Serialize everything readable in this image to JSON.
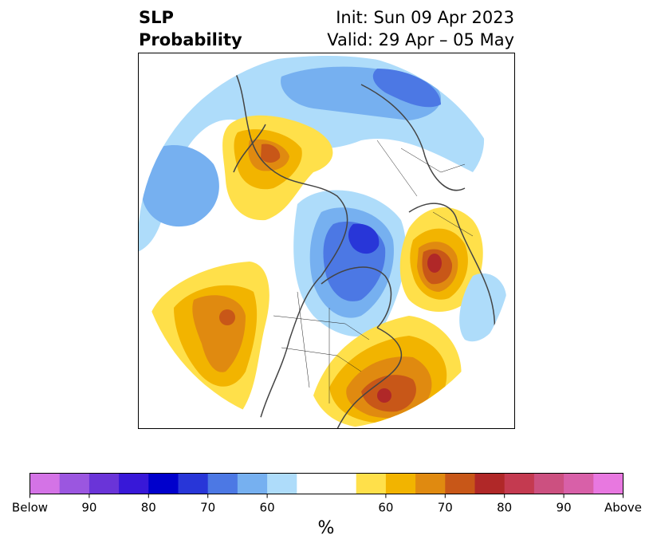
{
  "header": {
    "title_line1": "SLP",
    "title_line2": "Probability",
    "init_text": "Init: Sun 09 Apr 2023",
    "valid_text": "Valid: 29 Apr – 05 May"
  },
  "colorbar": {
    "unit_label": "%",
    "colors": [
      "#d473e6",
      "#9b56e0",
      "#6a34d8",
      "#3818d8",
      "#0000cc",
      "#2836d8",
      "#4c78e4",
      "#76b0f0",
      "#aedcfa",
      "#ffffff",
      "#ffffff",
      "#ffe04a",
      "#f2b400",
      "#e08a10",
      "#c85718",
      "#b02828",
      "#c43a50",
      "#cc5080",
      "#d860a8",
      "#e878e0"
    ],
    "tick_labels": [
      "Below",
      "90",
      "80",
      "70",
      "60",
      "60",
      "70",
      "80",
      "90",
      "Above"
    ]
  },
  "map": {
    "region": "Northern Hemisphere polar projection",
    "features": [
      {
        "name": "alaska-above-anomaly",
        "category": "above",
        "levels": [
          60,
          65,
          70,
          75
        ]
      },
      {
        "name": "northeast-pacific-above-anomaly",
        "category": "above",
        "levels": [
          60,
          65,
          70,
          75
        ]
      },
      {
        "name": "eastern-us-atlantic-above-anomaly",
        "category": "above",
        "levels": [
          60,
          65,
          70,
          75,
          80
        ]
      },
      {
        "name": "europe-above-anomaly",
        "category": "above",
        "levels": [
          60,
          65,
          70,
          75,
          80
        ]
      },
      {
        "name": "greenland-below-anomaly",
        "category": "below",
        "levels": [
          60,
          65,
          70,
          75
        ]
      },
      {
        "name": "north-pacific-below-anomaly",
        "category": "below",
        "levels": [
          60,
          65
        ]
      },
      {
        "name": "siberia-below-anomaly",
        "category": "below",
        "levels": [
          60,
          65,
          70
        ]
      }
    ]
  }
}
